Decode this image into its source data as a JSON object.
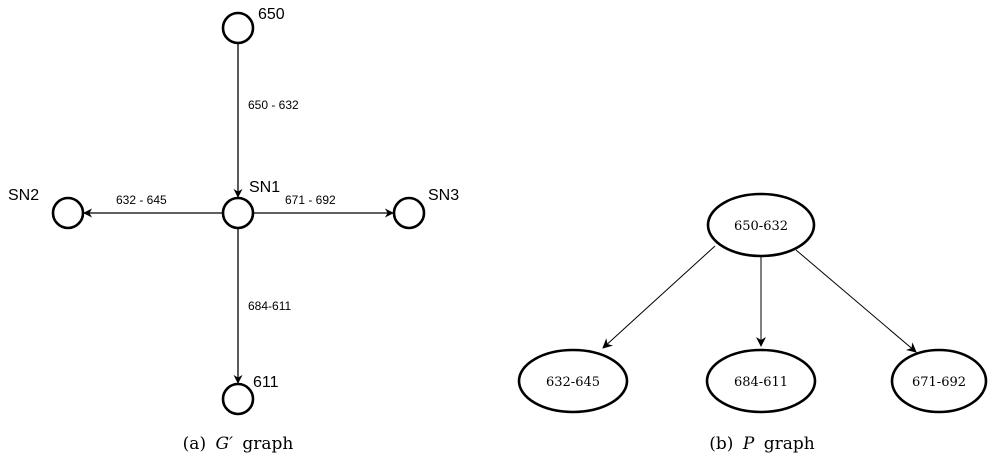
{
  "g_graph": {
    "nodes": {
      "top": "650",
      "center": "SN1",
      "left": "SN2",
      "right": "SN3",
      "bottom": "611"
    },
    "edges": {
      "top_center": "650 - 632",
      "center_left": "632 - 645",
      "center_right": "671 - 692",
      "center_bottom": "684-611"
    },
    "caption": {
      "label": "(a)",
      "symbol": "G′",
      "text": "graph"
    }
  },
  "p_graph": {
    "nodes": {
      "root": "650-632",
      "left": "632-645",
      "middle": "684-611",
      "right": "671-692"
    },
    "caption": {
      "label": "(b)",
      "symbol": "P",
      "text": "graph"
    }
  }
}
